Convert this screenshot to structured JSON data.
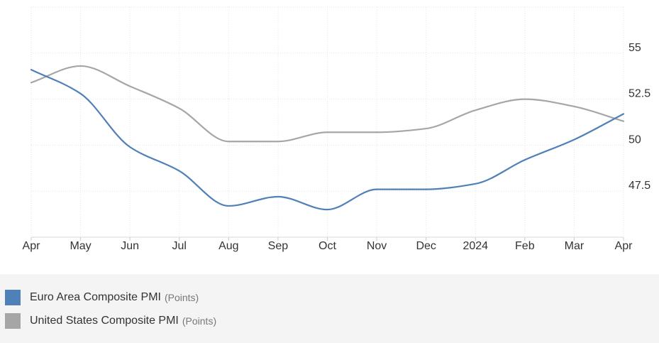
{
  "chart_data": {
    "type": "line",
    "categories": [
      "Apr",
      "May",
      "Jun",
      "Jul",
      "Aug",
      "Sep",
      "Oct",
      "Nov",
      "Dec",
      "2024",
      "Feb",
      "Mar",
      "Apr"
    ],
    "series": [
      {
        "name": "Euro Area Composite PMI",
        "unit": "(Points)",
        "color": "#5080b8",
        "values": [
          54.1,
          52.8,
          49.9,
          48.6,
          46.7,
          47.2,
          46.5,
          47.6,
          47.6,
          47.9,
          49.2,
          50.3,
          51.7
        ]
      },
      {
        "name": "United States Composite PMI",
        "unit": "(Points)",
        "color": "#a6a6a6",
        "values": [
          53.4,
          54.3,
          53.2,
          52.0,
          50.2,
          50.2,
          50.7,
          50.7,
          50.9,
          51.9,
          52.5,
          52.1,
          51.3
        ]
      }
    ],
    "y_ticks": [
      "47.5",
      "50",
      "52.5",
      "55"
    ],
    "ylim": [
      45.0,
      57.5
    ],
    "grid": true,
    "legend_position": "bottom"
  }
}
